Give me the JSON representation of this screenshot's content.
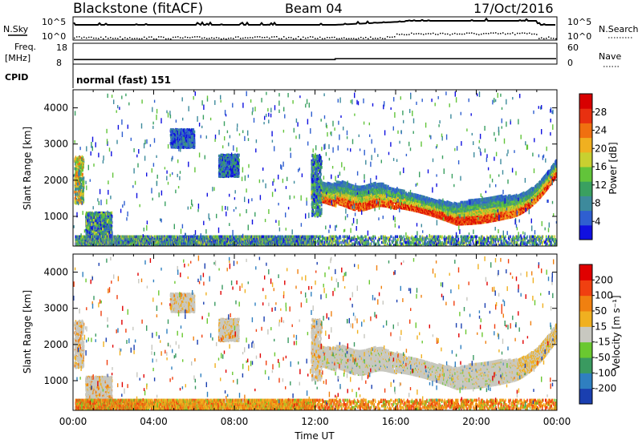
{
  "header": {
    "station": "Blackstone (fitACF)",
    "beam": "Beam 04",
    "date": "17/Oct/2016"
  },
  "top_panels": {
    "nsky": {
      "label": "N.Sky",
      "tick_hi": "10^5",
      "tick_lo": "10^0"
    },
    "nsearch": {
      "label": "N.Search",
      "tick_hi": "10^5",
      "tick_lo": "10^0"
    },
    "freq": {
      "label_1": "Freq.",
      "label_2": "[MHz]",
      "tick_hi": "18",
      "tick_lo": "8",
      "ylim": [
        8,
        18
      ],
      "value_before_1300": 10.2,
      "value_after_1300": 10.6
    },
    "nave": {
      "label": "Nave",
      "tick_hi": "60",
      "tick_lo": "0"
    },
    "cpid": {
      "label": "CPID",
      "value": "normal (fast) 151"
    }
  },
  "chart_data": [
    {
      "type": "heatmap",
      "name": "power",
      "ylabel": "Slant Range [km]",
      "xlabel": "",
      "ylim": [
        180,
        4500
      ],
      "xlim": [
        0,
        24
      ],
      "yticks": [
        "1000",
        "2000",
        "3000",
        "4000"
      ],
      "colorbar": {
        "label": "Power [dB]",
        "ticks": [
          "4",
          "8",
          "12",
          "16",
          "20",
          "24",
          "28"
        ],
        "colors": [
          "#1010e0",
          "#2f5fd0",
          "#3d8a9c",
          "#3aa060",
          "#62c43a",
          "#c8d030",
          "#f0b020",
          "#f07010",
          "#e83010",
          "#d80000"
        ]
      }
    },
    {
      "type": "heatmap",
      "name": "velocity",
      "ylabel": "Slant Range [km]",
      "xlabel": "Time UT",
      "ylim": [
        180,
        4500
      ],
      "xlim": [
        0,
        24
      ],
      "yticks": [
        "1000",
        "2000",
        "3000",
        "4000"
      ],
      "xticks": [
        "00:00",
        "04:00",
        "08:00",
        "12:00",
        "16:00",
        "20:00",
        "00:00"
      ],
      "colorbar": {
        "label": "Velocity [m s⁻¹]",
        "ticks": [
          "200",
          "100",
          "50",
          "15",
          "-15",
          "-50",
          "-100",
          "-200"
        ],
        "colors": [
          "#1a3fb0",
          "#2f7fc0",
          "#3a9a60",
          "#6ac830",
          "#c8c8c0",
          "#f0b020",
          "#f08010",
          "#f04010",
          "#e00000"
        ]
      }
    }
  ]
}
